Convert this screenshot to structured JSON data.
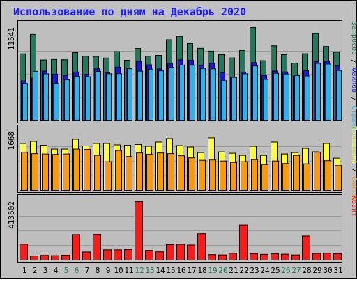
{
  "colors": {
    "frame_bg": "#c0c0c0",
    "panel_bg": "#bebebe",
    "title": "#1b1bff",
    "requests": "#1e7a5e",
    "files": "#1616e6",
    "pages": "#21b8ec",
    "visits": "#ffff33",
    "sites": "#ff9900",
    "kbytes": "#ff1a1a",
    "day_normal": "#000000",
    "day_weekend": "#1e7a5e"
  },
  "chart_data": {
    "type": "bar",
    "title": "Использование по дням на Декабрь 2020",
    "categories": [
      "1",
      "2",
      "3",
      "4",
      "5",
      "6",
      "7",
      "8",
      "9",
      "10",
      "11",
      "12",
      "13",
      "14",
      "15",
      "16",
      "17",
      "18",
      "19",
      "20",
      "21",
      "22",
      "23",
      "24",
      "25",
      "26",
      "27",
      "28",
      "29",
      "30",
      "31"
    ],
    "weekend_days": [
      "5",
      "6",
      "12",
      "13",
      "19",
      "20",
      "26",
      "27"
    ],
    "panels": [
      {
        "axis_max_label": "11541",
        "ymax": 11541,
        "side_legend": [
          {
            "text": "Запросов",
            "color": "#1e7a5e"
          },
          {
            "text": " / ",
            "color": "#000000"
          },
          {
            "text": "Файлов",
            "color": "#1616e6"
          },
          {
            "text": " / ",
            "color": "#000000"
          },
          {
            "text": "Страниц",
            "color": "#21b8ec"
          }
        ],
        "series": [
          {
            "name": "Запросов",
            "color": "#1e7a5e",
            "values": [
              8290,
              10690,
              7530,
              7590,
              7560,
              8440,
              8000,
              7970,
              7770,
              8560,
              7490,
              8950,
              8000,
              8090,
              10030,
              10450,
              9560,
              8970,
              8620,
              8180,
              7780,
              8700,
              11540,
              7440,
              9280,
              8180,
              7140,
              8300,
              10790,
              9200,
              8510
            ]
          },
          {
            "name": "Файлов",
            "color": "#1616e6",
            "values": [
              4940,
              5290,
              6160,
              5770,
              5610,
              6040,
              5760,
              6450,
              5940,
              6640,
              6480,
              7340,
              6920,
              6420,
              7100,
              7540,
              7480,
              6870,
              7130,
              5940,
              5380,
              6030,
              7200,
              5600,
              6160,
              6040,
              5560,
              6200,
              7330,
              7380,
              6790
            ]
          },
          {
            "name": "Страниц",
            "color": "#21b8ec",
            "values": [
              4620,
              6120,
              5820,
              4620,
              5080,
              5480,
              5460,
              6110,
              5830,
              5840,
              6450,
              6150,
              6390,
              6190,
              6630,
              6890,
              6880,
              6480,
              6440,
              4970,
              5380,
              5830,
              6790,
              5130,
              5880,
              5810,
              5600,
              5560,
              7100,
              7030,
              6230
            ]
          }
        ]
      },
      {
        "axis_max_label": "1668",
        "ymax": 1668,
        "side_legend": [
          {
            "text": "Посещений",
            "color": "#ffff33"
          },
          {
            "text": " / ",
            "color": "#000000"
          },
          {
            "text": "Сайтов",
            "color": "#ff9900"
          }
        ],
        "series": [
          {
            "name": "Посещений",
            "color": "#ffff33",
            "values": [
              1340,
              1400,
              1290,
              1180,
              1180,
              1460,
              1270,
              1340,
              1340,
              1300,
              1290,
              1310,
              1260,
              1380,
              1480,
              1280,
              1240,
              1080,
              1500,
              1100,
              1060,
              1000,
              1260,
              1000,
              1380,
              1040,
              1080,
              1200,
              1100,
              1340,
              920
            ]
          },
          {
            "name": "Сайтов",
            "color": "#ff9900",
            "values": [
              1090,
              1050,
              1040,
              1030,
              1040,
              1180,
              1170,
              1000,
              820,
              1140,
              970,
              1070,
              1030,
              1070,
              1050,
              990,
              930,
              860,
              870,
              840,
              800,
              820,
              880,
              740,
              840,
              770,
              1000,
              760,
              1090,
              850,
              710
            ]
          }
        ]
      },
      {
        "axis_max_label": "413502",
        "ymax": 413502,
        "side_legend": [
          {
            "text": "Кбайт",
            "color": "#ff1a1a"
          }
        ],
        "series": [
          {
            "name": "Кбайт",
            "color": "#ff1a1a",
            "values": [
              112000,
              29000,
              33000,
              31000,
              34000,
              180000,
              57000,
              182000,
              72000,
              72000,
              75000,
              413000,
              68000,
              58000,
              108000,
              111000,
              106000,
              186000,
              38000,
              36000,
              48000,
              248000,
              45000,
              40000,
              45000,
              41000,
              36000,
              170000,
              47000,
              48000,
              45000
            ]
          }
        ]
      }
    ]
  }
}
